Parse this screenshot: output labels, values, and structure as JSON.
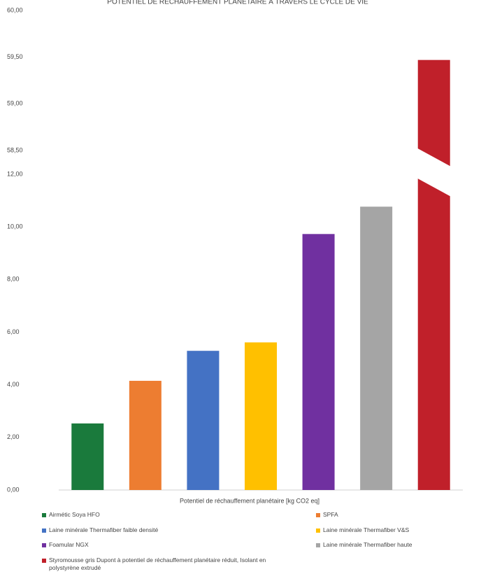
{
  "chart_data": {
    "type": "bar",
    "title": "POTENTIEL DE RÉCHAUFFEMENT PLANÉTAIRE À TRAVERS LE CYCLE DE VIE",
    "categories": [
      "Potentiel de réchauffement planétaire [kg CO2 eq]"
    ],
    "series": [
      {
        "name": "Airmétic Soya HFO",
        "color": "#1a7a3c",
        "values": [
          2.53
        ]
      },
      {
        "name": "SPFA",
        "color": "#ed7d31",
        "values": [
          4.15
        ]
      },
      {
        "name": "Laine minérale Thermafiber faible densité",
        "color": "#4472c4",
        "values": [
          5.29
        ]
      },
      {
        "name": "Laine minérale Thermafiber V&S",
        "color": "#ffc000",
        "values": [
          5.61
        ]
      },
      {
        "name": "Foamular NGX",
        "color": "#7030a0",
        "values": [
          9.73
        ]
      },
      {
        "name": "Laine minérale Thermafiber haute",
        "color": "#a5a5a5",
        "values": [
          10.77
        ]
      },
      {
        "name": "Styromousse gris Dupont à potentiel de réchauffement planétaire réduit, Isolant en polystyrène extrudé",
        "color": "#c0202a",
        "values": [
          59.47
        ]
      }
    ],
    "axis_segments": [
      {
        "ylim": [
          0,
          12
        ],
        "yticks": [
          {
            "value": 0,
            "label": "0,00"
          },
          {
            "value": 2,
            "label": "2,00"
          },
          {
            "value": 4,
            "label": "4,00"
          },
          {
            "value": 6,
            "label": "6,00"
          },
          {
            "value": 8,
            "label": "8,00"
          },
          {
            "value": 10,
            "label": "10,00"
          },
          {
            "value": 12,
            "label": "12,00"
          }
        ]
      },
      {
        "ylim": [
          58.5,
          60
        ],
        "yticks": [
          {
            "value": 58.5,
            "label": "58,50"
          },
          {
            "value": 59,
            "label": "59,00"
          },
          {
            "value": 59.5,
            "label": "59,50"
          },
          {
            "value": 60,
            "label": "60,00"
          }
        ]
      }
    ],
    "legend": "bottom"
  }
}
